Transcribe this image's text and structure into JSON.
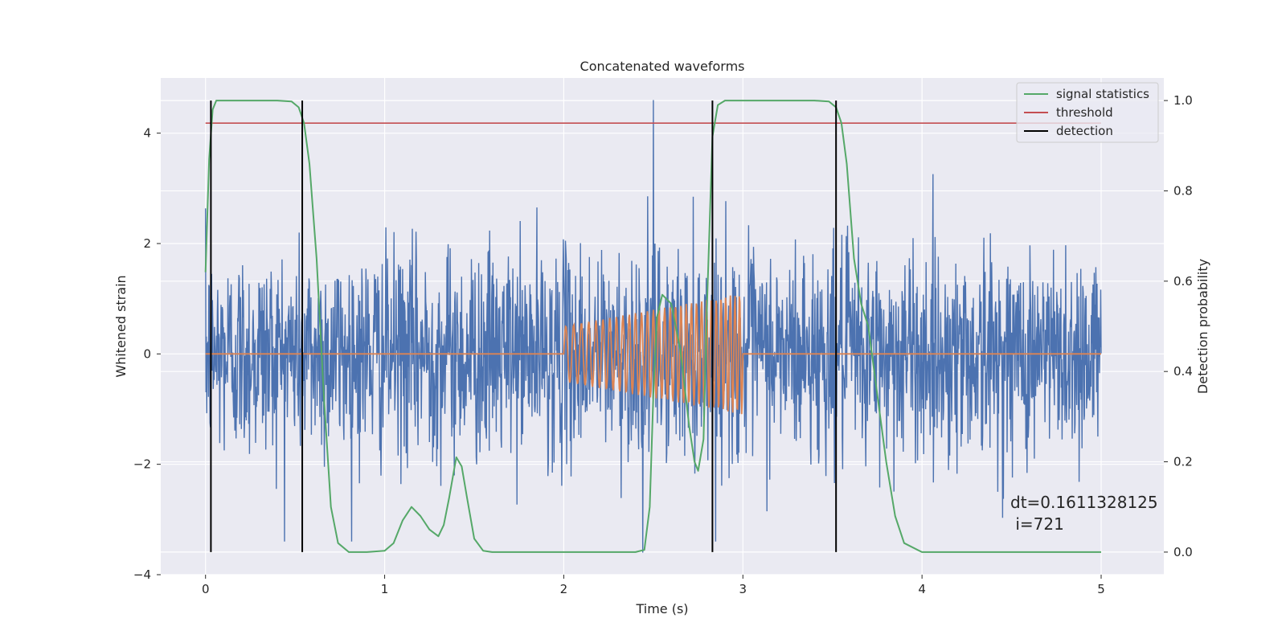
{
  "chart_data": {
    "type": "line",
    "title": "Concatenated waveforms",
    "xlabel": "Time (s)",
    "ylabel": "Whitened strain",
    "y2label": "Detection probability",
    "xlim": [
      -0.25,
      5.35
    ],
    "ylim": [
      -4,
      5
    ],
    "y2lim": [
      -0.05,
      1.05
    ],
    "xticks": [
      0,
      1,
      2,
      3,
      4,
      5
    ],
    "yticks": [
      -4,
      -2,
      0,
      2,
      4
    ],
    "y2ticks": [
      0.0,
      0.2,
      0.4,
      0.6,
      0.8,
      1.0
    ],
    "grid": true,
    "legend_position": "top-right",
    "legend": [
      "signal statistics",
      "threshold",
      "detection"
    ],
    "colors": {
      "strain": "#4c72b0",
      "injection": "#dd8452",
      "signal_statistics": "#55a868",
      "threshold": "#c44e52",
      "detection": "#000000",
      "background": "#eaeaf2",
      "grid": "#ffffff"
    },
    "series": [
      {
        "name": "signal statistics",
        "axis": "right",
        "x": [
          0.0,
          0.02,
          0.04,
          0.06,
          0.08,
          0.1,
          0.2,
          0.3,
          0.4,
          0.48,
          0.52,
          0.55,
          0.58,
          0.62,
          0.66,
          0.7,
          0.74,
          0.8,
          0.9,
          1.0,
          1.05,
          1.1,
          1.15,
          1.2,
          1.25,
          1.3,
          1.33,
          1.36,
          1.4,
          1.43,
          1.46,
          1.5,
          1.55,
          1.6,
          1.8,
          2.0,
          2.2,
          2.4,
          2.45,
          2.48,
          2.5,
          2.52,
          2.55,
          2.6,
          2.65,
          2.7,
          2.73,
          2.75,
          2.78,
          2.8,
          2.83,
          2.86,
          2.9,
          3.0,
          3.2,
          3.4,
          3.48,
          3.52,
          3.55,
          3.58,
          3.62,
          3.66,
          3.7,
          3.75,
          3.8,
          3.85,
          3.9,
          4.0,
          4.5,
          5.0
        ],
        "y": [
          0.62,
          0.87,
          0.98,
          1.0,
          1.0,
          1.0,
          1.0,
          1.0,
          1.0,
          0.998,
          0.985,
          0.95,
          0.86,
          0.65,
          0.35,
          0.1,
          0.02,
          0.0,
          0.0,
          0.003,
          0.02,
          0.07,
          0.1,
          0.08,
          0.05,
          0.035,
          0.06,
          0.12,
          0.21,
          0.19,
          0.12,
          0.03,
          0.003,
          0.0,
          0.0,
          0.0,
          0.0,
          0.0,
          0.005,
          0.1,
          0.35,
          0.52,
          0.57,
          0.55,
          0.45,
          0.28,
          0.2,
          0.18,
          0.25,
          0.55,
          0.92,
          0.99,
          1.0,
          1.0,
          1.0,
          1.0,
          0.998,
          0.985,
          0.95,
          0.86,
          0.65,
          0.55,
          0.5,
          0.35,
          0.2,
          0.08,
          0.02,
          0.0,
          0.0,
          0.0
        ]
      },
      {
        "name": "threshold",
        "axis": "right",
        "x": [
          0.0,
          5.0
        ],
        "y": [
          0.95,
          0.95
        ]
      },
      {
        "name": "detection",
        "axis": "right",
        "type": "vlines",
        "x": [
          0.03,
          0.54,
          2.83,
          3.52
        ],
        "ymin": 0.0,
        "ymax": 1.0
      },
      {
        "axis": "left",
        "description": "whitened strain noise, approx. Gaussian amplitude ~1, range about -3.3 to 4.6, spike near t=2.5",
        "x_range": [
          0,
          5
        ]
      },
      {
        "axis": "left",
        "description": "injected chirp signal, zero except between t=2 and t=3, amplitude rising from ~0.5 to ~1.1",
        "x_range": [
          2,
          3
        ]
      }
    ],
    "annotations": [
      {
        "text": "dt=0.1611328125\n i=721"
      }
    ]
  }
}
